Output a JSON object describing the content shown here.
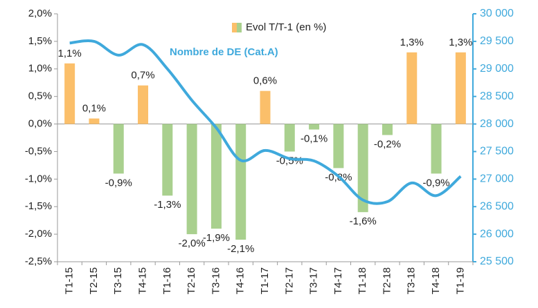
{
  "chart_data": {
    "type": "bar_line",
    "categories": [
      "T1-15",
      "T2-15",
      "T3-15",
      "T4-15",
      "T1-16",
      "T2-16",
      "T3-16",
      "T4-16",
      "T1-17",
      "T2-17",
      "T3-17",
      "T4-17",
      "T1-18",
      "T2-18",
      "T3-18",
      "T4-18",
      "T1-19"
    ],
    "series": [
      {
        "name": "Evol T/T-1 (en %)",
        "type": "bar",
        "positive_color": "#fbbf6a",
        "negative_color": "#a9d08e",
        "values": [
          1.1,
          0.1,
          -0.9,
          0.7,
          -1.3,
          -2.0,
          -1.9,
          -2.1,
          0.6,
          -0.5,
          -0.1,
          -0.8,
          -1.6,
          -0.2,
          1.3,
          -0.9,
          1.3
        ],
        "value_labels": [
          "1,1%",
          "0,1%",
          "-0,9%",
          "0,7%",
          "-1,3%",
          "-2,0%",
          "-1,9%",
          "-2,1%",
          "0,6%",
          "-0,5%",
          "-0,1%",
          "-0,8%",
          "-1,6%",
          "-0,2%",
          "1,3%",
          "-0,9%",
          "1,3%"
        ]
      },
      {
        "name": "Nombre de DE (Cat.A)",
        "type": "line",
        "axis": "y2",
        "color": "#3fa9dc",
        "values": [
          29470,
          29500,
          29250,
          29440,
          29000,
          28430,
          27930,
          27340,
          27520,
          27370,
          27330,
          27050,
          26620,
          26590,
          26930,
          26700,
          27050
        ]
      }
    ],
    "ylim": [
      -2.5,
      2.0
    ],
    "yticks": [
      {
        "value": -2.5,
        "label": "-2,5%"
      },
      {
        "value": -2.0,
        "label": "-2,0%"
      },
      {
        "value": -1.5,
        "label": "-1,5%"
      },
      {
        "value": -1.0,
        "label": "-1,0%"
      },
      {
        "value": -0.5,
        "label": "-0,5%"
      },
      {
        "value": 0,
        "label": "0,0%"
      },
      {
        "value": 0.5,
        "label": "0,5%"
      },
      {
        "value": 1.0,
        "label": "1,0%"
      },
      {
        "value": 1.5,
        "label": "1,5%"
      },
      {
        "value": 2.0,
        "label": "2,0%"
      }
    ],
    "y2lim": [
      25500,
      30000
    ],
    "y2ticks": [
      {
        "value": 25500,
        "label": "25 500"
      },
      {
        "value": 26000,
        "label": "26 000"
      },
      {
        "value": 26500,
        "label": "26 500"
      },
      {
        "value": 27000,
        "label": "27 000"
      },
      {
        "value": 27500,
        "label": "27 500"
      },
      {
        "value": 28000,
        "label": "28 000"
      },
      {
        "value": 28500,
        "label": "28 500"
      },
      {
        "value": 29000,
        "label": "29 000"
      },
      {
        "value": 29500,
        "label": "29 500"
      },
      {
        "value": 30000,
        "label": "30 000"
      }
    ]
  }
}
